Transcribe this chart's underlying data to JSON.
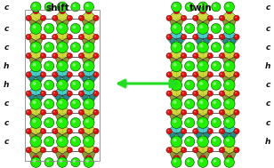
{
  "title_left": "shift",
  "title_right": "twin",
  "left_labels": [
    "c",
    "c",
    "c",
    "h",
    "h",
    "c",
    "c",
    "c"
  ],
  "right_labels": [
    "c",
    "c",
    "c",
    "h",
    "c",
    "c",
    "c",
    "h"
  ],
  "bg_color": "#ffffff",
  "arrow_color": "#22dd22",
  "label_color": "#111111",
  "title_fontsize": 7.5,
  "label_fontsize": 6.5,
  "figsize": [
    3.08,
    1.89
  ],
  "dpi": 100,
  "yellow_green": "#c8d424",
  "cyan_blue": "#30c8c0",
  "bright_green": "#22ee00",
  "red_o": "#dd1111",
  "bond_color": "#222222",
  "cell_color": "#888888"
}
